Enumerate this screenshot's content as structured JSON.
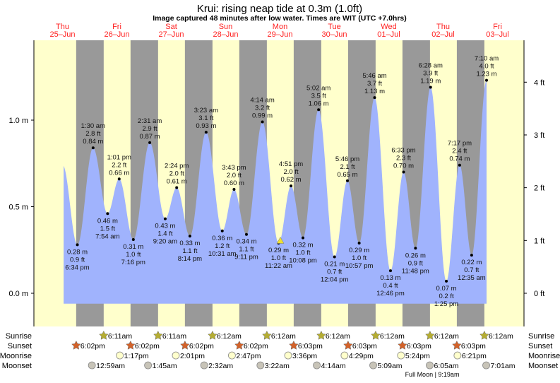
{
  "chart_data": {
    "type": "area",
    "title": "Krui: rising  neap tide at 0.3m (1.0ft)",
    "subtitle": "Image captured 48 minutes after low water. Times are WIT (UTC +7.0hrs)",
    "days": [
      {
        "dow": "Thu",
        "date": "25–Jun"
      },
      {
        "dow": "Fri",
        "date": "26–Jun"
      },
      {
        "dow": "Sat",
        "date": "27–Jun"
      },
      {
        "dow": "Sun",
        "date": "28–Jun"
      },
      {
        "dow": "Mon",
        "date": "29–Jun"
      },
      {
        "dow": "Tue",
        "date": "30–Jun"
      },
      {
        "dow": "Wed",
        "date": "01–Jul"
      },
      {
        "dow": "Thu",
        "date": "02–Jul"
      },
      {
        "dow": "Fri",
        "date": "03–Jul"
      }
    ],
    "y_left": {
      "unit": "m",
      "ticks": [
        "0.0 m",
        "0.5 m",
        "1.0 m"
      ],
      "tick_values": [
        0,
        0.5,
        1.0
      ],
      "range": [
        -0.06,
        1.3
      ]
    },
    "y_right": {
      "unit": "ft",
      "ticks": [
        "0 ft",
        "1 ft",
        "2 ft",
        "3 ft",
        "4 ft"
      ],
      "tick_values": [
        0,
        1,
        2,
        3,
        4
      ]
    },
    "grid": false,
    "extrema": [
      {
        "date": "25–Jun",
        "time": "6:34 pm",
        "m": 0.28,
        "ft": 0.9,
        "type": "low"
      },
      {
        "date": "26–Jun",
        "time": "1:30 am",
        "m": 0.84,
        "ft": 2.8,
        "type": "high"
      },
      {
        "date": "26–Jun",
        "time": "7:54 am",
        "m": 0.46,
        "ft": 1.5,
        "type": "low"
      },
      {
        "date": "26–Jun",
        "time": "1:01 pm",
        "m": 0.66,
        "ft": 2.2,
        "type": "high"
      },
      {
        "date": "26–Jun",
        "time": "7:16 pm",
        "m": 0.31,
        "ft": 1.0,
        "type": "low"
      },
      {
        "date": "27–Jun",
        "time": "2:31 am",
        "m": 0.87,
        "ft": 2.9,
        "type": "high"
      },
      {
        "date": "27–Jun",
        "time": "9:20 am",
        "m": 0.43,
        "ft": 1.4,
        "type": "low"
      },
      {
        "date": "27–Jun",
        "time": "2:24 pm",
        "m": 0.61,
        "ft": 2.0,
        "type": "high"
      },
      {
        "date": "27–Jun",
        "time": "8:14 pm",
        "m": 0.33,
        "ft": 1.1,
        "type": "low"
      },
      {
        "date": "28–Jun",
        "time": "3:23 am",
        "m": 0.93,
        "ft": 3.1,
        "type": "high"
      },
      {
        "date": "28–Jun",
        "time": "10:31 am",
        "m": 0.36,
        "ft": 1.2,
        "type": "low"
      },
      {
        "date": "28–Jun",
        "time": "3:43 pm",
        "m": 0.6,
        "ft": 2.0,
        "type": "high"
      },
      {
        "date": "28–Jun",
        "time": "9:11 pm",
        "m": 0.34,
        "ft": 1.1,
        "type": "low"
      },
      {
        "date": "29–Jun",
        "time": "4:14 am",
        "m": 0.99,
        "ft": 3.2,
        "type": "high"
      },
      {
        "date": "29–Jun",
        "time": "11:22 am",
        "m": 0.29,
        "ft": 1.0,
        "type": "low"
      },
      {
        "date": "29–Jun",
        "time": "4:51 pm",
        "m": 0.62,
        "ft": 2.0,
        "type": "high"
      },
      {
        "date": "29–Jun",
        "time": "10:08 pm",
        "m": 0.32,
        "ft": 1.0,
        "type": "low"
      },
      {
        "date": "30–Jun",
        "time": "5:02 am",
        "m": 1.06,
        "ft": 3.5,
        "type": "high"
      },
      {
        "date": "30–Jun",
        "time": "12:04 pm",
        "m": 0.21,
        "ft": 0.7,
        "type": "low"
      },
      {
        "date": "30–Jun",
        "time": "5:46 pm",
        "m": 0.65,
        "ft": 2.1,
        "type": "high"
      },
      {
        "date": "30–Jun",
        "time": "10:57 pm",
        "m": 0.29,
        "ft": 1.0,
        "type": "low"
      },
      {
        "date": "01–Jul",
        "time": "5:46 am",
        "m": 1.13,
        "ft": 3.7,
        "type": "high"
      },
      {
        "date": "01–Jul",
        "time": "12:46 pm",
        "m": 0.13,
        "ft": 0.4,
        "type": "low"
      },
      {
        "date": "01–Jul",
        "time": "6:33 pm",
        "m": 0.7,
        "ft": 2.3,
        "type": "high"
      },
      {
        "date": "01–Jul",
        "time": "11:48 pm",
        "m": 0.26,
        "ft": 0.9,
        "type": "low"
      },
      {
        "date": "02–Jul",
        "time": "6:28 am",
        "m": 1.19,
        "ft": 3.9,
        "type": "high"
      },
      {
        "date": "02–Jul",
        "time": "1:25 pm",
        "m": 0.07,
        "ft": 0.2,
        "type": "low"
      },
      {
        "date": "02–Jul",
        "time": "7:17 pm",
        "m": 0.74,
        "ft": 2.4,
        "type": "high"
      },
      {
        "date": "03–Jul",
        "time": "12:35 am",
        "m": 0.22,
        "ft": 0.7,
        "type": "low"
      },
      {
        "date": "03–Jul",
        "time": "7:10 am",
        "m": 1.23,
        "ft": 4.0,
        "type": "high"
      }
    ],
    "current": {
      "date": "29–Jun",
      "time": "12:10 pm",
      "m": 0.3
    },
    "colors": {
      "water": "#a0b3fd",
      "day": "#ffffcc",
      "night": "#999999",
      "day_label": "#ff2020",
      "sunrise": "#b5ad32",
      "sunset": "#d2622a",
      "moonrise": "#ffffcc",
      "moonset": "#c8c4b8",
      "marker": "#f0e030"
    },
    "rows": {
      "labels": {
        "sunrise": "Sunrise",
        "sunset": "Sunset",
        "moonrise": "Moonrise",
        "moonset": "Moonset"
      },
      "sunrise": [
        {
          "date": "26–Jun",
          "time": "6:11am"
        },
        {
          "date": "27–Jun",
          "time": "6:11am"
        },
        {
          "date": "28–Jun",
          "time": "6:12am"
        },
        {
          "date": "29–Jun",
          "time": "6:12am"
        },
        {
          "date": "30–Jun",
          "time": "6:12am"
        },
        {
          "date": "01–Jul",
          "time": "6:12am"
        },
        {
          "date": "02–Jul",
          "time": "6:12am"
        },
        {
          "date": "03–Jul",
          "time": "6:12am"
        }
      ],
      "sunset": [
        {
          "date": "25–Jun",
          "time": "6:02pm"
        },
        {
          "date": "26–Jun",
          "time": "6:02pm"
        },
        {
          "date": "27–Jun",
          "time": "6:02pm"
        },
        {
          "date": "28–Jun",
          "time": "6:02pm"
        },
        {
          "date": "29–Jun",
          "time": "6:03pm"
        },
        {
          "date": "30–Jun",
          "time": "6:03pm"
        },
        {
          "date": "01–Jul",
          "time": "6:03pm"
        },
        {
          "date": "02–Jul",
          "time": "6:03pm"
        }
      ],
      "moonrise": [
        {
          "date": "26–Jun",
          "time": "1:17pm"
        },
        {
          "date": "27–Jun",
          "time": "2:01pm"
        },
        {
          "date": "28–Jun",
          "time": "2:47pm"
        },
        {
          "date": "29–Jun",
          "time": "3:36pm"
        },
        {
          "date": "30–Jun",
          "time": "4:29pm"
        },
        {
          "date": "01–Jul",
          "time": "5:24pm"
        },
        {
          "date": "02–Jul",
          "time": "6:21pm"
        }
      ],
      "moonset": [
        {
          "date": "26–Jun",
          "time": "12:59am"
        },
        {
          "date": "27–Jun",
          "time": "1:45am"
        },
        {
          "date": "28–Jun",
          "time": "2:32am"
        },
        {
          "date": "29–Jun",
          "time": "3:22am"
        },
        {
          "date": "30–Jun",
          "time": "4:14am"
        },
        {
          "date": "01–Jul",
          "time": "5:09am"
        },
        {
          "date": "02–Jul",
          "time": "6:05am"
        },
        {
          "date": "03–Jul",
          "time": "7:01am"
        }
      ],
      "moon_phase": "Full Moon | 9:19am"
    }
  }
}
